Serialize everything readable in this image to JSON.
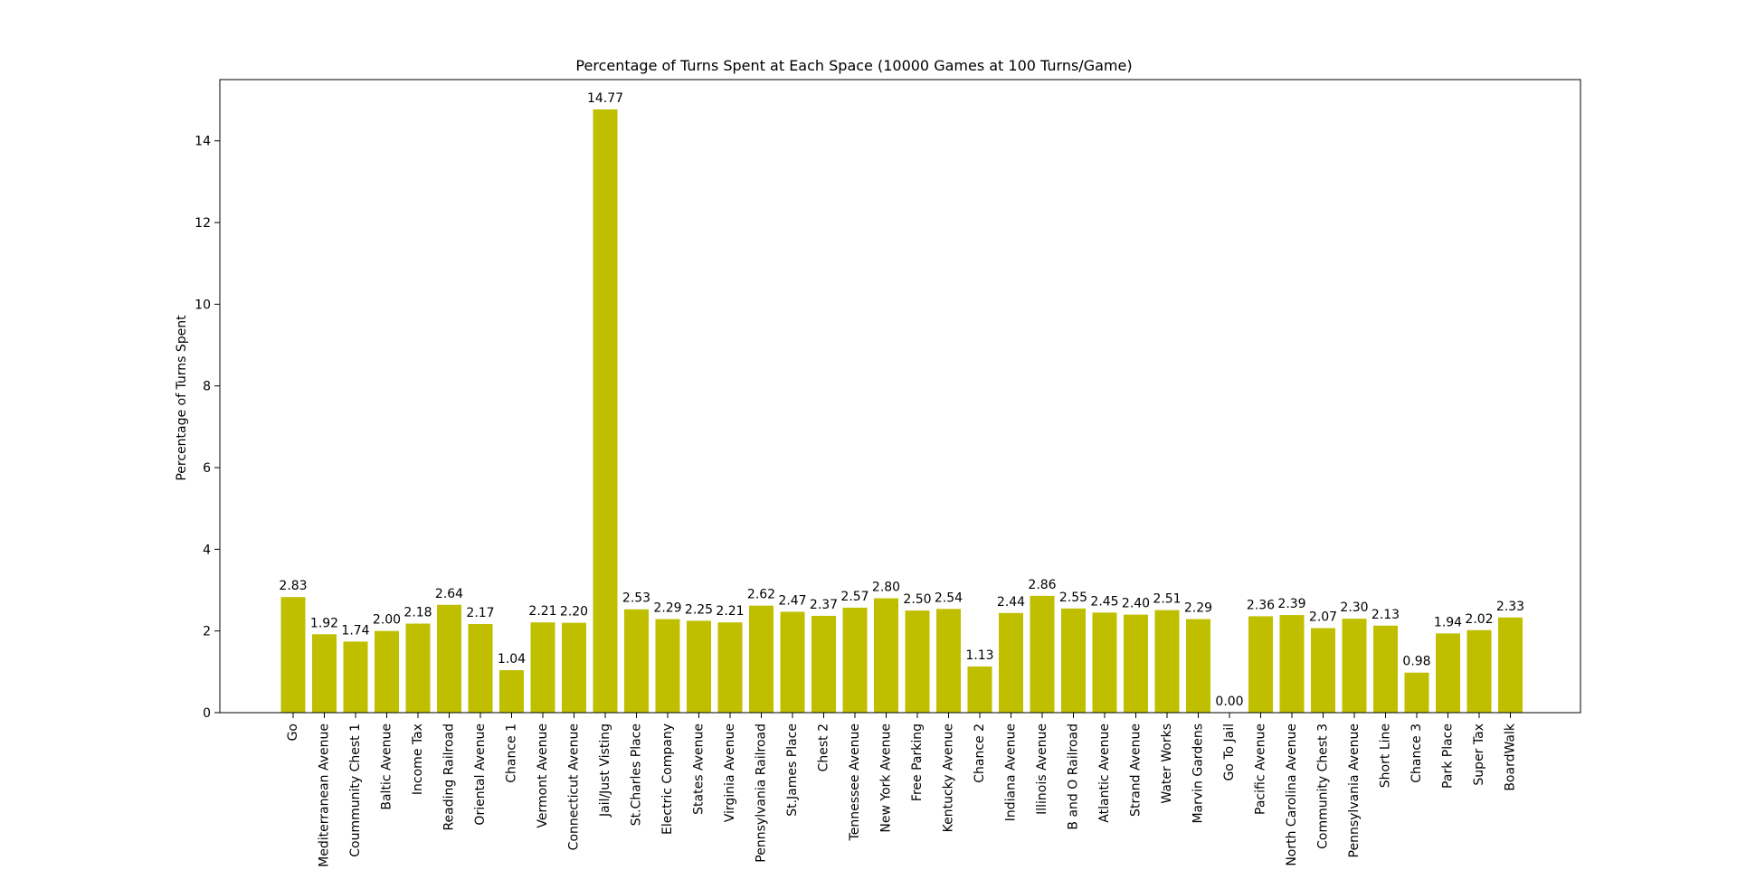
{
  "chart_data": {
    "type": "bar",
    "title": "Percentage of Turns Spent at Each Space (10000 Games at 100 Turns/Game)",
    "xlabel": "",
    "ylabel": "Percentage of Turns Spent",
    "ylim": [
      0,
      15.5
    ],
    "yticks": [
      0,
      2,
      4,
      6,
      8,
      10,
      12,
      14
    ],
    "grid": false,
    "bar_color": "#bfbf00",
    "categories": [
      "Go",
      "Mediterranean Avenue",
      "Coummunity Chest 1",
      "Baltic Avenue",
      "Income Tax",
      "Reading Railroad",
      "Oriental Avenue",
      "Chance 1",
      "Vermont Avenue",
      "Connecticut Avenue",
      "Jail/Just Visting",
      "St.Charles Place",
      "Electric Company",
      "States Avenue",
      "Virginia Avenue",
      "Pennsylvania Railroad",
      "St.James Place",
      "Chest 2",
      "Tennessee Avenue",
      "New York Avenue",
      "Free Parking",
      "Kentucky Avenue",
      "Chance 2",
      "Indiana Avenue",
      "Illinois Avenue",
      "B and O Railroad",
      "Atlantic Avenue",
      "Strand Avenue",
      "Water Works",
      "Marvin Gardens",
      "Go To Jail",
      "Pacific Avenue",
      "North Carolina Avenue",
      "Community Chest 3",
      "Pennsylvania Avenue",
      "Short Line",
      "Chance 3",
      "Park Place",
      "Super Tax",
      "BoardWalk"
    ],
    "values": [
      2.83,
      1.92,
      1.74,
      2.0,
      2.18,
      2.64,
      2.17,
      1.04,
      2.21,
      2.2,
      14.77,
      2.53,
      2.29,
      2.25,
      2.21,
      2.62,
      2.47,
      2.37,
      2.57,
      2.8,
      2.5,
      2.54,
      1.13,
      2.44,
      2.86,
      2.55,
      2.45,
      2.4,
      2.51,
      2.29,
      0.0,
      2.36,
      2.39,
      2.07,
      2.3,
      2.13,
      0.98,
      1.94,
      2.02,
      2.33
    ],
    "data_labels": [
      "2.83",
      "1.92",
      "1.74",
      "2.00",
      "2.18",
      "2.64",
      "2.17",
      "1.04",
      "2.21",
      "2.20",
      "14.77",
      "2.53",
      "2.29",
      "2.25",
      "2.21",
      "2.62",
      "2.47",
      "2.37",
      "2.57",
      "2.80",
      "2.50",
      "2.54",
      "1.13",
      "2.44",
      "2.86",
      "2.55",
      "2.45",
      "2.40",
      "2.51",
      "2.29",
      "0.00",
      "2.36",
      "2.39",
      "2.07",
      "2.30",
      "2.13",
      "0.98",
      "1.94",
      "2.02",
      "2.33"
    ]
  }
}
